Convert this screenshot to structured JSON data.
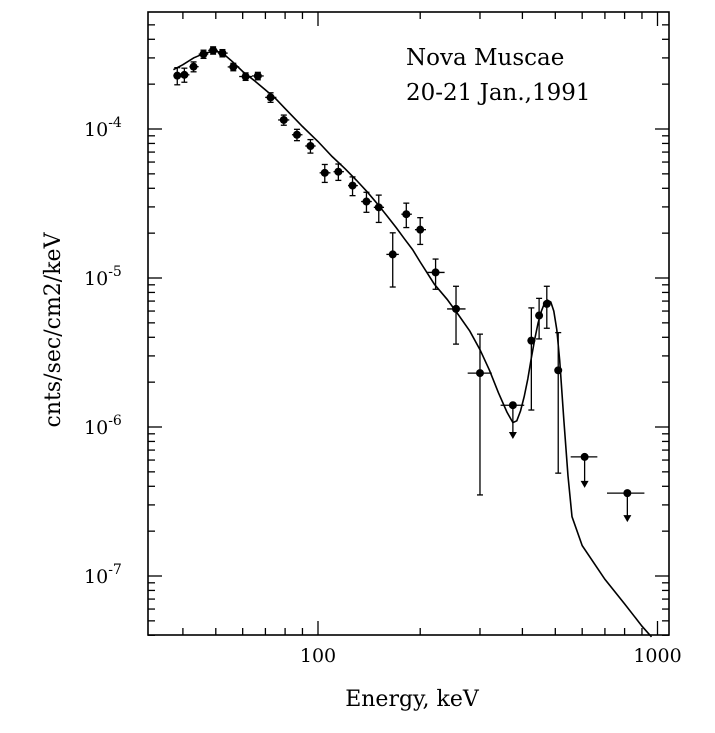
{
  "chart_data": {
    "type": "scatter",
    "title": "",
    "annotation": [
      "Nova Muscae",
      "20-21 Jan.,1991"
    ],
    "xlabel": "Energy, keV",
    "ylabel": "cnts/sec/cm2/keV",
    "x_scale": "log",
    "y_scale": "log",
    "xlim": [
      35,
      1000
    ],
    "ylim": [
      4e-08,
      0.0006
    ],
    "x_ticks": [
      {
        "value": 100,
        "label": "100"
      },
      {
        "value": 1000,
        "label": "1000"
      }
    ],
    "y_ticks": [
      {
        "value": 0.0001,
        "base": "10",
        "exp": "-4"
      },
      {
        "value": 1e-05,
        "base": "10",
        "exp": "-5"
      },
      {
        "value": 1e-06,
        "base": "10",
        "exp": "-6"
      },
      {
        "value": 1e-07,
        "base": "10",
        "exp": "-7"
      }
    ],
    "points": [
      {
        "x": 38.5,
        "xlo": 37.9,
        "xhi": 39.4,
        "y": 0.000228,
        "ylo": 0.000198,
        "yhi": 0.000258
      },
      {
        "x": 40.4,
        "xlo": 39.4,
        "xhi": 41.8,
        "y": 0.000231,
        "ylo": 0.000206,
        "yhi": 0.000256
      },
      {
        "x": 43.0,
        "xlo": 41.8,
        "xhi": 44.5,
        "y": 0.000262,
        "ylo": 0.000242,
        "yhi": 0.000282
      },
      {
        "x": 46.0,
        "xlo": 44.5,
        "xhi": 47.5,
        "y": 0.000318,
        "ylo": 0.000298,
        "yhi": 0.000338
      },
      {
        "x": 49.1,
        "xlo": 47.5,
        "xhi": 50.7,
        "y": 0.000337,
        "ylo": 0.000318,
        "yhi": 0.000356
      },
      {
        "x": 52.3,
        "xlo": 50.7,
        "xhi": 54.2,
        "y": 0.000323,
        "ylo": 0.000305,
        "yhi": 0.000341
      },
      {
        "x": 56.3,
        "xlo": 54.2,
        "xhi": 58.6,
        "y": 0.000261,
        "ylo": 0.000246,
        "yhi": 0.000276
      },
      {
        "x": 61.2,
        "xlo": 58.6,
        "xhi": 63.9,
        "y": 0.000225,
        "ylo": 0.000212,
        "yhi": 0.000238
      },
      {
        "x": 66.5,
        "xlo": 63.9,
        "xhi": 69.2,
        "y": 0.000227,
        "ylo": 0.000214,
        "yhi": 0.00024
      },
      {
        "x": 72.5,
        "xlo": 69.9,
        "xhi": 75.4,
        "y": 0.000163,
        "ylo": 0.000151,
        "yhi": 0.000175
      },
      {
        "x": 79.3,
        "xlo": 76.3,
        "xhi": 82.3,
        "y": 0.000115,
        "ylo": 0.000106,
        "yhi": 0.000124
      },
      {
        "x": 86.7,
        "xlo": 83.8,
        "xhi": 90.0,
        "y": 9.15e-05,
        "ylo": 8.35e-05,
        "yhi": 9.95e-05
      },
      {
        "x": 95.0,
        "xlo": 91.7,
        "xhi": 98.4,
        "y": 7.69e-05,
        "ylo": 6.89e-05,
        "yhi": 8.49e-05
      },
      {
        "x": 104.7,
        "xlo": 101.1,
        "xhi": 108.8,
        "y": 5.08e-05,
        "ylo": 4.38e-05,
        "yhi": 5.78e-05
      },
      {
        "x": 114.8,
        "xlo": 111.1,
        "xhi": 119.2,
        "y": 5.17e-05,
        "ylo": 4.52e-05,
        "yhi": 5.82e-05
      },
      {
        "x": 126.4,
        "xlo": 122.6,
        "xhi": 131.0,
        "y": 4.17e-05,
        "ylo": 3.57e-05,
        "yhi": 4.77e-05
      },
      {
        "x": 138.9,
        "xlo": 134.0,
        "xhi": 144.0,
        "y": 3.26e-05,
        "ylo": 2.76e-05,
        "yhi": 3.76e-05
      },
      {
        "x": 151.0,
        "xlo": 146.0,
        "xhi": 156.5,
        "y": 2.98e-05,
        "ylo": 2.36e-05,
        "yhi": 3.6e-05
      },
      {
        "x": 166.0,
        "xlo": 159.0,
        "xhi": 173.0,
        "y": 1.44e-05,
        "ylo": 8.7e-06,
        "yhi": 2.01e-05
      },
      {
        "x": 182.0,
        "xlo": 176.0,
        "xhi": 189.0,
        "y": 2.68e-05,
        "ylo": 2.18e-05,
        "yhi": 3.18e-05
      },
      {
        "x": 200.0,
        "xlo": 193.0,
        "xhi": 208.0,
        "y": 2.11e-05,
        "ylo": 1.68e-05,
        "yhi": 2.54e-05
      },
      {
        "x": 222.0,
        "xlo": 209.0,
        "xhi": 236.0,
        "y": 1.09e-05,
        "ylo": 8.4e-06,
        "yhi": 1.34e-05
      },
      {
        "x": 255.0,
        "xlo": 240.0,
        "xhi": 272.0,
        "y": 6.2e-06,
        "ylo": 3.6e-06,
        "yhi": 8.8e-06
      },
      {
        "x": 300.0,
        "xlo": 276.0,
        "xhi": 325.0,
        "y": 2.3e-06,
        "ylo": 3.5e-07,
        "yhi": 4.2e-06
      },
      {
        "x": 375.0,
        "xlo": 345.0,
        "xhi": 405.0,
        "y": 1.4e-06,
        "upper_limit": true,
        "arrow_to": 8.3e-07
      },
      {
        "x": 425.0,
        "xlo": 415.0,
        "xhi": 435.0,
        "y": 3.8e-06,
        "ylo": 1.3e-06,
        "yhi": 6.3e-06
      },
      {
        "x": 448.0,
        "xlo": 437.0,
        "xhi": 459.0,
        "y": 5.6e-06,
        "ylo": 3.9e-06,
        "yhi": 7.3e-06
      },
      {
        "x": 472.0,
        "xlo": 461.0,
        "xhi": 483.0,
        "y": 6.7e-06,
        "ylo": 4.6e-06,
        "yhi": 8.8e-06
      },
      {
        "x": 510.0,
        "xlo": 498.0,
        "xhi": 522.0,
        "y": 2.4e-06,
        "ylo": 4.9e-07,
        "yhi": 4.3e-06
      },
      {
        "x": 610.0,
        "xlo": 555.0,
        "xhi": 665.0,
        "y": 6.3e-07,
        "upper_limit": true,
        "arrow_to": 3.9e-07
      },
      {
        "x": 815.0,
        "xlo": 710.0,
        "xhi": 915.0,
        "y": 3.6e-07,
        "upper_limit": true,
        "arrow_to": 2.3e-07
      }
    ],
    "model_curve": {
      "x": [
        37.5,
        40,
        43,
        46,
        49,
        52,
        56,
        60,
        65,
        70,
        75,
        80,
        90,
        100,
        110,
        120,
        130,
        140,
        150,
        160,
        170,
        180,
        190,
        200,
        220,
        240,
        260,
        280,
        300,
        320,
        340,
        360,
        375,
        385,
        395,
        405,
        415,
        425,
        435,
        445,
        455,
        465,
        475,
        485,
        495,
        505,
        515,
        530,
        545,
        560,
        600,
        700,
        800,
        900,
        960
      ],
      "y": [
        0.00025,
        0.00027,
        0.0003,
        0.00032,
        0.000333,
        0.000327,
        0.000283,
        0.000243,
        0.000211,
        0.000183,
        0.00016,
        0.000137,
        0.000104,
        8.24e-05,
        6.54e-05,
        5.42e-05,
        4.51e-05,
        3.76e-05,
        3.12e-05,
        2.6e-05,
        2.18e-05,
        1.82e-05,
        1.55e-05,
        1.28e-05,
        9.1e-06,
        7.2e-06,
        5.6e-06,
        4.4e-06,
        3.3e-06,
        2.4e-06,
        1.7e-06,
        1.26e-06,
        1.07e-06,
        1.1e-06,
        1.28e-06,
        1.6e-06,
        2.1e-06,
        2.9e-06,
        3.9e-06,
        5e-06,
        6e-06,
        6.8e-06,
        7.1e-06,
        6.9e-06,
        6e-06,
        4.5e-06,
        2.8e-06,
        1.1e-06,
        4.7e-07,
        2.5e-07,
        1.6e-07,
        9.5e-08,
        6.5e-08,
        4.6e-08,
        3.9e-08
      ]
    }
  }
}
